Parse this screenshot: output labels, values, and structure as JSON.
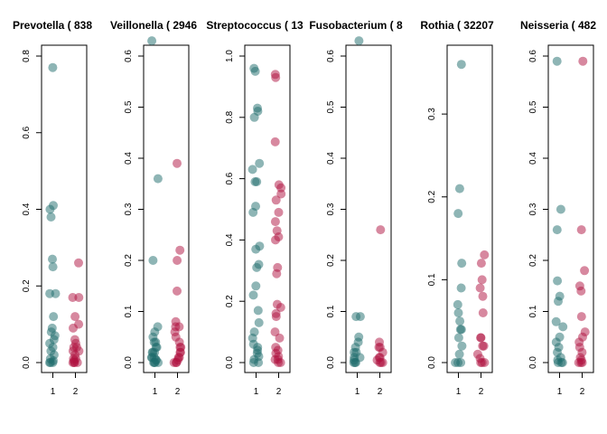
{
  "colors": {
    "group1": "#1E6B6B",
    "group2": "#B0123F",
    "axis": "#000000",
    "background": "#FFFFFF"
  },
  "chart_data": [
    {
      "type": "scatter",
      "title": "Prevotella ( 838",
      "categories": [
        "1",
        "2"
      ],
      "xlim": [
        0.5,
        2.5
      ],
      "ylim": [
        0,
        0.8
      ],
      "yticks": [
        "0.0",
        "0.2",
        "0.4",
        "0.6",
        "0.8"
      ],
      "series": [
        {
          "category": "1",
          "values": [
            0.77,
            0.41,
            0.4,
            0.38,
            0.27,
            0.25,
            0.18,
            0.18,
            0.12,
            0.09,
            0.08,
            0.07,
            0.06,
            0.05,
            0.04,
            0.03,
            0.02,
            0.01,
            0.005,
            0.0,
            0.0,
            0.0
          ]
        },
        {
          "category": "2",
          "values": [
            0.26,
            0.17,
            0.17,
            0.12,
            0.1,
            0.09,
            0.06,
            0.05,
            0.04,
            0.04,
            0.03,
            0.03,
            0.02,
            0.01,
            0.01,
            0.005,
            0.0,
            0.0,
            0.0,
            0.0
          ]
        }
      ]
    },
    {
      "type": "scatter",
      "title": "Veillonella ( 2946",
      "categories": [
        "1",
        "2"
      ],
      "xlim": [
        0.5,
        2.5
      ],
      "ylim": [
        0,
        0.6
      ],
      "yticks": [
        "0.0",
        "0.1",
        "0.2",
        "0.3",
        "0.4",
        "0.5",
        "0.6"
      ],
      "series": [
        {
          "category": "1",
          "values": [
            0.63,
            0.36,
            0.2,
            0.07,
            0.06,
            0.05,
            0.04,
            0.04,
            0.03,
            0.03,
            0.02,
            0.02,
            0.02,
            0.01,
            0.01,
            0.01,
            0.005,
            0.005,
            0.0,
            0.0,
            0.0,
            0.0
          ]
        },
        {
          "category": "2",
          "values": [
            0.39,
            0.22,
            0.2,
            0.14,
            0.08,
            0.07,
            0.07,
            0.06,
            0.05,
            0.04,
            0.03,
            0.03,
            0.02,
            0.02,
            0.01,
            0.01,
            0.005,
            0.0,
            0.0,
            0.0
          ]
        }
      ]
    },
    {
      "type": "scatter",
      "title": "Streptococcus ( 13",
      "categories": [
        "1",
        "2"
      ],
      "xlim": [
        0.5,
        2.5
      ],
      "ylim": [
        0,
        1.0
      ],
      "yticks": [
        "0.0",
        "0.2",
        "0.4",
        "0.6",
        "0.8",
        "1.0"
      ],
      "series": [
        {
          "category": "1",
          "values": [
            0.96,
            0.95,
            0.83,
            0.82,
            0.8,
            0.65,
            0.63,
            0.59,
            0.59,
            0.51,
            0.49,
            0.38,
            0.37,
            0.32,
            0.31,
            0.25,
            0.22,
            0.17,
            0.13,
            0.1,
            0.08,
            0.06,
            0.05,
            0.04,
            0.03,
            0.02,
            0.01,
            0.0,
            0.0
          ]
        },
        {
          "category": "2",
          "values": [
            0.94,
            0.93,
            0.72,
            0.58,
            0.57,
            0.55,
            0.53,
            0.49,
            0.46,
            0.43,
            0.41,
            0.4,
            0.31,
            0.29,
            0.19,
            0.18,
            0.16,
            0.15,
            0.1,
            0.08,
            0.05,
            0.04,
            0.03,
            0.02,
            0.01,
            0.01,
            0.0,
            0.0
          ]
        }
      ]
    },
    {
      "type": "scatter",
      "title": "Fusobacterium ( 8",
      "categories": [
        "1",
        "2"
      ],
      "xlim": [
        0.5,
        2.5
      ],
      "ylim": [
        0,
        0.6
      ],
      "yticks": [
        "0.0",
        "0.1",
        "0.2",
        "0.3",
        "0.4",
        "0.5",
        "0.6"
      ],
      "series": [
        {
          "category": "1",
          "values": [
            0.63,
            0.09,
            0.09,
            0.05,
            0.04,
            0.03,
            0.02,
            0.02,
            0.01,
            0.01,
            0.005,
            0.0,
            0.0,
            0.0
          ]
        },
        {
          "category": "2",
          "values": [
            0.26,
            0.04,
            0.03,
            0.03,
            0.02,
            0.01,
            0.01,
            0.005,
            0.0,
            0.0,
            0.0
          ]
        }
      ]
    },
    {
      "type": "scatter",
      "title": "Rothia ( 32207",
      "categories": [
        "1",
        "2"
      ],
      "xlim": [
        0.5,
        2.5
      ],
      "ylim": [
        0,
        0.37
      ],
      "yticks": [
        "0.0",
        "0.1",
        "0.2",
        "0.3"
      ],
      "series": [
        {
          "category": "1",
          "values": [
            0.36,
            0.21,
            0.18,
            0.12,
            0.09,
            0.07,
            0.06,
            0.05,
            0.04,
            0.04,
            0.03,
            0.02,
            0.01,
            0.0,
            0.0,
            0.0
          ]
        },
        {
          "category": "2",
          "values": [
            0.13,
            0.12,
            0.1,
            0.09,
            0.08,
            0.06,
            0.03,
            0.03,
            0.02,
            0.02,
            0.01,
            0.005,
            0.0,
            0.0,
            0.0
          ]
        }
      ]
    },
    {
      "type": "scatter",
      "title": "Neisseria ( 482",
      "categories": [
        "1",
        "2"
      ],
      "xlim": [
        0.5,
        2.5
      ],
      "ylim": [
        0,
        0.6
      ],
      "yticks": [
        "0.0",
        "0.1",
        "0.2",
        "0.3",
        "0.4",
        "0.5",
        "0.6"
      ],
      "series": [
        {
          "category": "1",
          "values": [
            0.59,
            0.3,
            0.26,
            0.16,
            0.13,
            0.12,
            0.08,
            0.07,
            0.05,
            0.04,
            0.03,
            0.02,
            0.01,
            0.005,
            0.0,
            0.0,
            0.0
          ]
        },
        {
          "category": "2",
          "values": [
            0.59,
            0.26,
            0.18,
            0.15,
            0.14,
            0.09,
            0.06,
            0.05,
            0.04,
            0.03,
            0.02,
            0.01,
            0.005,
            0.0,
            0.0,
            0.0
          ]
        }
      ]
    }
  ]
}
